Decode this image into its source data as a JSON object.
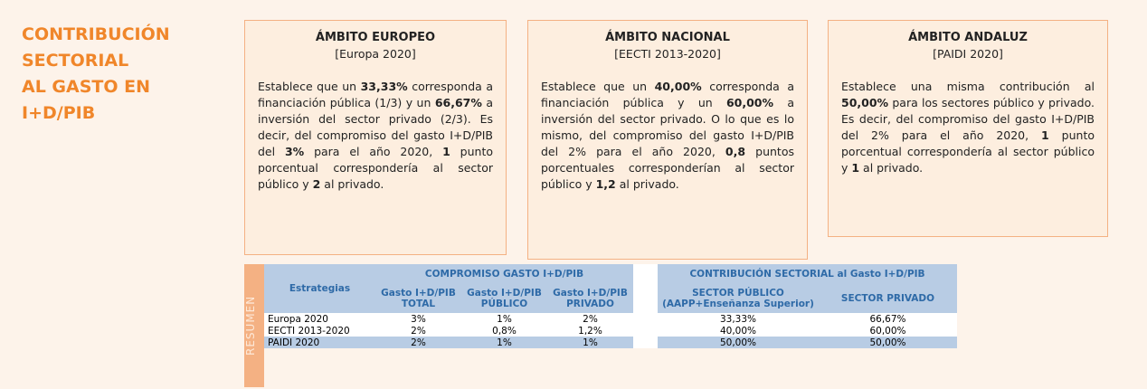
{
  "title_lines": [
    "CONTRIBUCIÓN",
    "SECTORIAL",
    "AL GASTO EN",
    "I+D/PIB"
  ],
  "boxes": [
    {
      "heading": "ÁMBITO EUROPEO",
      "subheading": "[Europa 2020]",
      "body": [
        {
          "text": "Establece que un ",
          "bold": false
        },
        {
          "text": "33,33%",
          "bold": true
        },
        {
          "text": " corresponda a financiación pública (1/3) y un ",
          "bold": false
        },
        {
          "text": "66,67%",
          "bold": true
        },
        {
          "text": " a inversión del sector privado (2/3). Es decir, del compromiso del gasto I+D/PIB del ",
          "bold": false
        },
        {
          "text": "3%",
          "bold": true
        },
        {
          "text": " para el año 2020, ",
          "bold": false
        },
        {
          "text": "1",
          "bold": true
        },
        {
          "text": " punto porcentual correspondería al sector público y ",
          "bold": false
        },
        {
          "text": "2",
          "bold": true
        },
        {
          "text": " al privado.",
          "bold": false
        }
      ]
    },
    {
      "heading": "ÁMBITO NACIONAL",
      "subheading": "[EECTI 2013-2020]",
      "body": [
        {
          "text": "Establece que un ",
          "bold": false
        },
        {
          "text": "40,00%",
          "bold": true
        },
        {
          "text": " corresponda a financiación pública y un ",
          "bold": false
        },
        {
          "text": "60,00%",
          "bold": true
        },
        {
          "text": " a inversión del sector privado. O lo que es lo mismo, del compromiso del gasto I+D/PIB del 2% para el año 2020, ",
          "bold": false
        },
        {
          "text": "0,8",
          "bold": true
        },
        {
          "text": " puntos porcentuales corresponderían al sector público y ",
          "bold": false
        },
        {
          "text": "1,2",
          "bold": true
        },
        {
          "text": " al privado.",
          "bold": false
        }
      ]
    },
    {
      "heading": "ÁMBITO ANDALUZ",
      "subheading": "[PAIDI 2020]",
      "body": [
        {
          "text": "Establece una misma contribución al ",
          "bold": false
        },
        {
          "text": "50,00%",
          "bold": true
        },
        {
          "text": " para los sectores público y privado. Es decir, del compromiso del gasto I+D/PIB del 2% para el año 2020, ",
          "bold": false
        },
        {
          "text": "1",
          "bold": true
        },
        {
          "text": " punto porcentual correspondería al sector público y ",
          "bold": false
        },
        {
          "text": "1",
          "bold": true
        },
        {
          "text": " al privado.",
          "bold": false
        }
      ]
    }
  ],
  "table": {
    "side_label": "RESUMEN",
    "first_header": "Estrategias",
    "group1": "COMPROMISO GASTO I+D/PIB",
    "group2": "CONTRIBUCIÓN SECTORIAL al Gasto I+D/PIB",
    "group1_columns": [
      [
        "Gasto I+D/PIB",
        "TOTAL"
      ],
      [
        "Gasto I+D/PIB",
        "PÚBLICO"
      ],
      [
        "Gasto I+D/PIB",
        "PRIVADO"
      ]
    ],
    "group2_columns": [
      [
        "SECTOR PÚBLICO",
        "(AAPP+Enseñanza Superior)"
      ],
      [
        "SECTOR PRIVADO"
      ]
    ],
    "rows": [
      [
        "Europa 2020",
        "3%",
        "1%",
        "2%",
        "33,33%",
        "66,67%"
      ],
      [
        "EECTI 2013-2020",
        "2%",
        "0,8%",
        "1,2%",
        "40,00%",
        "60,00%"
      ],
      [
        "PAIDI 2020",
        "2%",
        "1%",
        "1%",
        "50,00%",
        "50,00%"
      ]
    ]
  }
}
